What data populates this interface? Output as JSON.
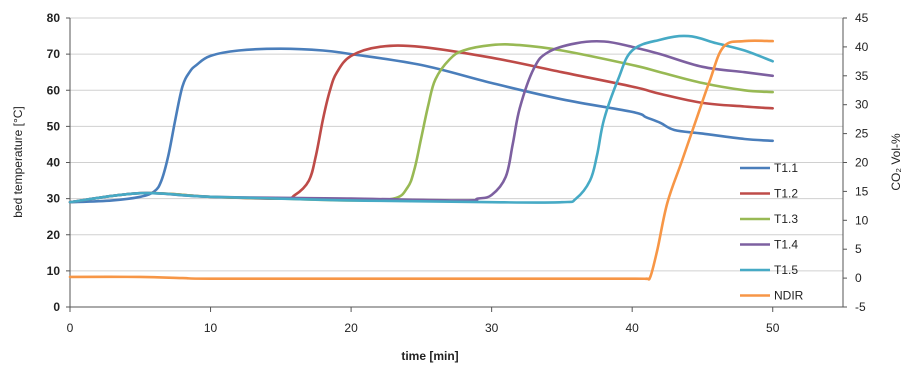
{
  "chart_data": {
    "type": "line",
    "title": "",
    "xlabel": "time [min]",
    "ylabel_left": "bed temperature [°C]",
    "ylabel_right": "CO₂ Vol-%",
    "xlim": [
      0,
      55
    ],
    "ylim_left": [
      0,
      80
    ],
    "ylim_right": [
      -5,
      45
    ],
    "x_ticks": [
      "0",
      "10",
      "20",
      "30",
      "40",
      "50"
    ],
    "y_left_ticks": [
      "0",
      "10",
      "20",
      "30",
      "40",
      "50",
      "60",
      "70",
      "80"
    ],
    "y_right_ticks": [
      "-5",
      "0",
      "5",
      "10",
      "15",
      "20",
      "25",
      "30",
      "35",
      "40",
      "45"
    ],
    "grid": "horizontal",
    "legend_position": "right",
    "series": [
      {
        "name": "T1.1",
        "axis": "left",
        "color": "#4a7ebb",
        "x": [
          0,
          3,
          5,
          6,
          6.5,
          7,
          7.5,
          8,
          8.5,
          9,
          10,
          12,
          15,
          18,
          20,
          25,
          30,
          35,
          40,
          41,
          42,
          43,
          45,
          48,
          50
        ],
        "y": [
          29,
          29.5,
          30.5,
          32,
          35,
          42,
          52,
          61,
          65,
          67,
          69.5,
          71,
          71.5,
          71,
          70,
          67,
          62,
          57.5,
          54,
          52.5,
          51,
          49,
          48,
          46.5,
          46
        ]
      },
      {
        "name": "T1.2",
        "axis": "left",
        "color": "#be4b48",
        "x": [
          0,
          5,
          10,
          15,
          16,
          17,
          17.5,
          18,
          18.5,
          19,
          20,
          22,
          25,
          30,
          35,
          40,
          42,
          45,
          48,
          50
        ],
        "y": [
          29,
          31.5,
          30.5,
          30,
          31,
          35,
          42,
          52,
          60,
          65,
          69.5,
          72,
          72,
          69,
          65,
          61,
          59,
          56.5,
          55.5,
          55
        ]
      },
      {
        "name": "T1.3",
        "axis": "left",
        "color": "#98b954",
        "x": [
          0,
          5,
          10,
          15,
          20,
          23,
          24,
          24.5,
          25,
          25.5,
          26,
          27,
          28,
          30,
          32,
          35,
          40,
          42,
          45,
          48,
          50
        ],
        "y": [
          29,
          31.5,
          30.5,
          30,
          29.5,
          30,
          33,
          38,
          47,
          56,
          63,
          68.5,
          71,
          72.5,
          72.5,
          71,
          67,
          65,
          62,
          60,
          59.5
        ]
      },
      {
        "name": "T1.4",
        "axis": "left",
        "color": "#7d60a0",
        "x": [
          0,
          5,
          10,
          20,
          28,
          29,
          30,
          31,
          31.5,
          32,
          33,
          34,
          36,
          38,
          40,
          42,
          45,
          48,
          50
        ],
        "y": [
          29,
          31.5,
          30.5,
          30,
          29.5,
          30,
          31,
          36,
          45,
          55,
          66,
          70.5,
          73,
          73.5,
          72,
          70,
          66.5,
          65,
          64
        ]
      },
      {
        "name": "T1.5",
        "axis": "left",
        "color": "#46aac5",
        "x": [
          0,
          5,
          10,
          20,
          30,
          35,
          36,
          37,
          37.5,
          38,
          39,
          40,
          42,
          44,
          46,
          48,
          50
        ],
        "y": [
          29,
          31.5,
          30.5,
          29.5,
          29,
          29,
          30,
          35,
          42,
          52,
          63,
          71,
          74,
          75,
          73,
          71,
          68
        ]
      },
      {
        "name": "NDIR",
        "axis": "right",
        "color": "#f79646",
        "x": [
          0,
          5,
          8,
          10,
          20,
          30,
          40,
          41,
          41.3,
          41.8,
          42.5,
          43.5,
          44.5,
          45.5,
          46.5,
          48,
          50
        ],
        "y": [
          0.2,
          0.2,
          0,
          -0.1,
          -0.1,
          -0.1,
          -0.1,
          -0.1,
          0.3,
          5,
          13,
          20,
          27,
          34,
          40,
          41,
          41
        ]
      }
    ]
  }
}
